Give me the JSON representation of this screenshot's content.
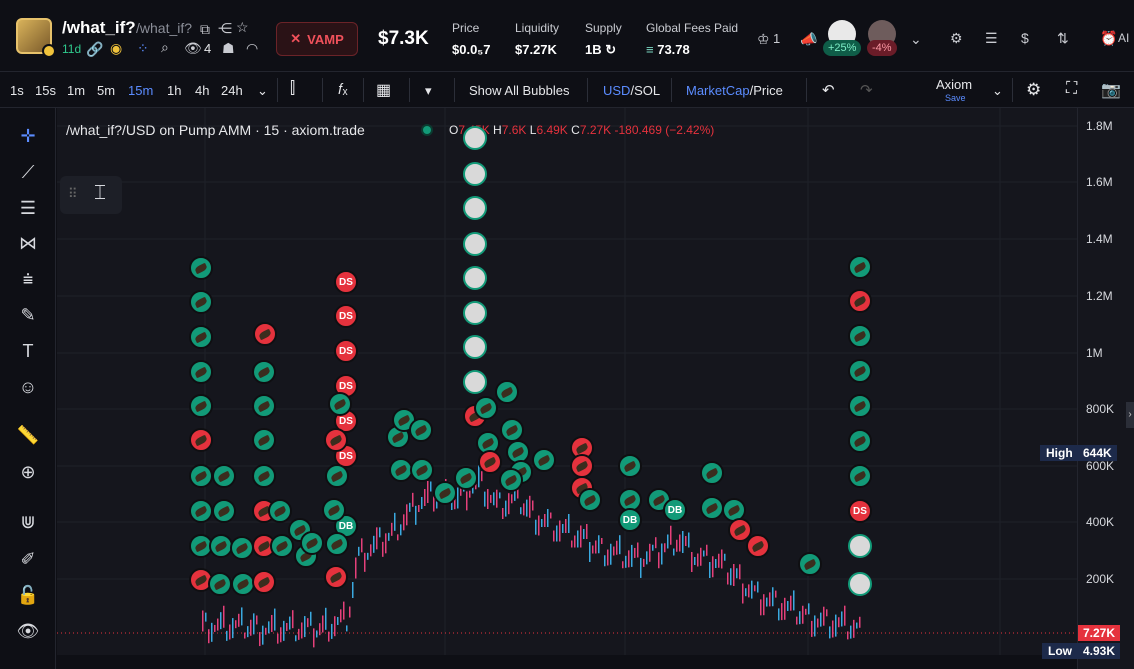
{
  "header": {
    "token_name": "/what_if?",
    "token_symbol": "/what_if?",
    "age": "11d",
    "holder_count": "4",
    "vamp_label": "VAMP",
    "market_cap": "$7.3K",
    "price_label": "Price",
    "price_value": "$0.0₅7",
    "liquidity_label": "Liquidity",
    "liquidity_value": "$7.27K",
    "supply_label": "Supply",
    "supply_value": "1B",
    "fees_label": "Global Fees Paid",
    "fees_value": "73.78",
    "crown_count": "1",
    "pill_up": "+25%",
    "pill_down": "-4%",
    "right_cut": "AI"
  },
  "timeframes": [
    "1s",
    "15s",
    "1m",
    "5m",
    "15m",
    "1h",
    "4h",
    "24h"
  ],
  "active_timeframe": "15m",
  "toolbar": {
    "show_bubbles": "Show All Bubbles",
    "usd": "USD",
    "sol": "/SOL",
    "mcap": "MarketCap",
    "price": "/Price",
    "layout_name": "Axiom",
    "layout_save": "Save"
  },
  "chart": {
    "legend": "/what_if?/USD on Pump AMM · 15 · axiom.trade",
    "o_label": "O",
    "o_val": "7.45K",
    "h_label": "H",
    "h_val": "7.6K",
    "l_label": "L",
    "l_val": "6.49K",
    "c_label": "C",
    "c_val": "7.27K",
    "change": "-180.469 (−2.42%)"
  },
  "chart_data": {
    "type": "line",
    "y_ticks": [
      "1.8M",
      "1.6M",
      "1.4M",
      "1.2M",
      "1M",
      "800K",
      "600K",
      "400K",
      "200K"
    ],
    "ylim": [
      0,
      1800000
    ],
    "high_label": "High",
    "high_value": "644K",
    "current_value": "7.27K",
    "low_label": "Low",
    "low_value": "4.93K",
    "bubble_ds_label": "DS",
    "bubble_db_label": "DB"
  },
  "colors": {
    "accent": "#5b8cff",
    "up": "#129a78",
    "down": "#e5323d",
    "bg": "#15161d"
  }
}
